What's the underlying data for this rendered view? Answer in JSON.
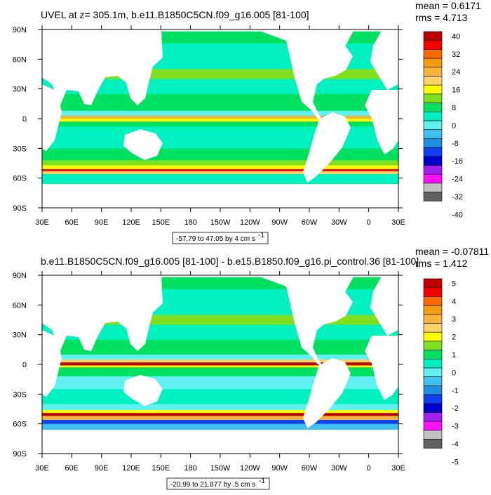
{
  "colors": {
    "land": "#ffffff",
    "frame": "#000000",
    "scale_top": [
      "#c00000",
      "#f00000",
      "#ff6a00",
      "#f39c12",
      "#f7b23b",
      "#fbd26a",
      "#ffff00",
      "#80e020",
      "#00e060",
      "#00f0c0",
      "#60f0f0",
      "#40c0f0",
      "#2090e0",
      "#1040f0",
      "#0000d0",
      "#a020f0",
      "#ff10ff",
      "#c0c0c0",
      "#606060"
    ],
    "scale_bottom": [
      "#c00000",
      "#f00000",
      "#ff6a00",
      "#f39c12",
      "#f7b23b",
      "#fbd26a",
      "#ffff00",
      "#80e020",
      "#00e060",
      "#00f0c0",
      "#60f0f0",
      "#40c0f0",
      "#2090e0",
      "#1040f0",
      "#0000d0",
      "#a020f0",
      "#ff10ff",
      "#c0c0c0",
      "#606060"
    ]
  },
  "chart_data": [
    {
      "type": "heatmap",
      "title": "UVEL at z= 305.1m, b.e11.B1850C5CN.f09_g16.005 [81-100]",
      "stats": {
        "mean": "mean = 0.6171",
        "rms": "rms = 4.713"
      },
      "xlabels": [
        "30E",
        "60E",
        "90E",
        "120E",
        "150E",
        "180",
        "150W",
        "120W",
        "90W",
        "60W",
        "30W",
        "0",
        "30E"
      ],
      "ylabels": [
        "90N",
        "60N",
        "30N",
        "0",
        "30S",
        "60S",
        "90S"
      ],
      "xlim": [
        30,
        390
      ],
      "ylim": [
        -90,
        90
      ],
      "colorbar_labels": [
        "40",
        "32",
        "24",
        "16",
        "8",
        "0",
        "-8",
        "-16",
        "-24",
        "-32",
        "-40"
      ],
      "contour_range": {
        "text": "-57.79 to 47.05 by 4 cm s",
        "sup": "-1"
      },
      "bands": [
        {
          "lat": [
            -70,
            -55
          ],
          "color": "#00f0c0"
        },
        {
          "lat": [
            -56,
            -52
          ],
          "color": "#fbd26a"
        },
        {
          "lat": [
            -53,
            -50
          ],
          "color": "#f00000"
        },
        {
          "lat": [
            -51,
            -47
          ],
          "color": "#ffff00"
        },
        {
          "lat": [
            -47,
            -42
          ],
          "color": "#80e020"
        },
        {
          "lat": [
            -42,
            -30
          ],
          "color": "#00e060"
        },
        {
          "lat": [
            -30,
            -8
          ],
          "color": "#00f0c0"
        },
        {
          "lat": [
            -8,
            -3
          ],
          "color": "#00e060"
        },
        {
          "lat": [
            -3,
            0
          ],
          "color": "#ffff00"
        },
        {
          "lat": [
            0,
            3
          ],
          "color": "#f7b23b"
        },
        {
          "lat": [
            3,
            8
          ],
          "color": "#60f0f0"
        },
        {
          "lat": [
            8,
            25
          ],
          "color": "#00e060"
        },
        {
          "lat": [
            25,
            40
          ],
          "color": "#00f0c0"
        },
        {
          "lat": [
            40,
            50
          ],
          "color": "#80e020"
        },
        {
          "lat": [
            50,
            70
          ],
          "color": "#00f0c0"
        },
        {
          "lat": [
            76,
            88
          ],
          "color": "#00e060"
        }
      ]
    },
    {
      "type": "heatmap",
      "title": "b.e11.B1850C5CN.f09_g16.005 [81-100] - b.e15.B1850.f09_g16.pi_control.36 [81-100]",
      "stats": {
        "mean": "mean = -0.07811",
        "rms": "rms = 1.412"
      },
      "xlabels": [
        "30E",
        "60E",
        "90E",
        "120E",
        "150E",
        "180",
        "150W",
        "120W",
        "90W",
        "60W",
        "30W",
        "0",
        "30E"
      ],
      "ylabels": [
        "90N",
        "60N",
        "30N",
        "0",
        "30S",
        "60S",
        "90S"
      ],
      "xlim": [
        30,
        390
      ],
      "ylim": [
        -90,
        90
      ],
      "colorbar_labels": [
        "5",
        "4",
        "3",
        "2",
        "1",
        "0",
        "-1",
        "-2",
        "-3",
        "-4",
        "-5"
      ],
      "contour_range": {
        "text": "-20.99 to 21.877 by .5 cm s",
        "sup": "-1"
      },
      "bands": [
        {
          "lat": [
            -70,
            -60
          ],
          "color": "#40c0f0"
        },
        {
          "lat": [
            -60,
            -56
          ],
          "color": "#1040f0"
        },
        {
          "lat": [
            -56,
            -52
          ],
          "color": "#f7b23b"
        },
        {
          "lat": [
            -52,
            -49
          ],
          "color": "#c00000"
        },
        {
          "lat": [
            -49,
            -46
          ],
          "color": "#ffff00"
        },
        {
          "lat": [
            -46,
            -40
          ],
          "color": "#60f0f0"
        },
        {
          "lat": [
            -40,
            -25
          ],
          "color": "#00f0c0"
        },
        {
          "lat": [
            -25,
            -12
          ],
          "color": "#60f0f0"
        },
        {
          "lat": [
            -12,
            -3
          ],
          "color": "#00e060"
        },
        {
          "lat": [
            -3,
            -1
          ],
          "color": "#ffff00"
        },
        {
          "lat": [
            -1,
            2
          ],
          "color": "#c00000"
        },
        {
          "lat": [
            2,
            5
          ],
          "color": "#fbd26a"
        },
        {
          "lat": [
            5,
            10
          ],
          "color": "#60f0f0"
        },
        {
          "lat": [
            10,
            25
          ],
          "color": "#00e060"
        },
        {
          "lat": [
            25,
            40
          ],
          "color": "#00f0c0"
        },
        {
          "lat": [
            40,
            50
          ],
          "color": "#80e020"
        },
        {
          "lat": [
            50,
            70
          ],
          "color": "#00f0c0"
        },
        {
          "lat": [
            76,
            88
          ],
          "color": "#00e060"
        }
      ]
    }
  ]
}
